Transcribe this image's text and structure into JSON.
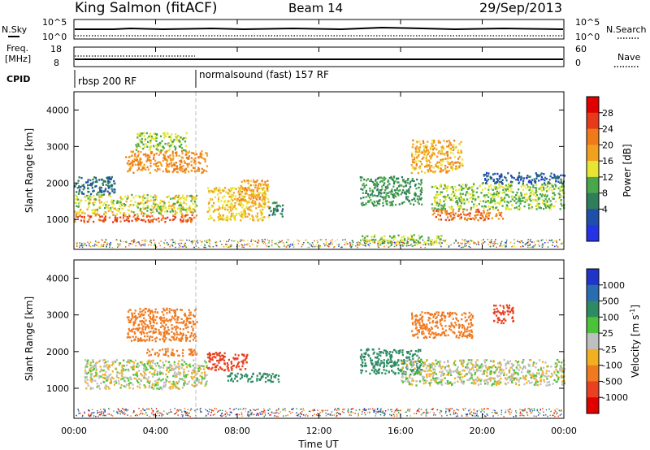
{
  "header": {
    "station": "King Salmon (fitACF)",
    "beam": "Beam 14",
    "date": "29/Sep/2013"
  },
  "status_panels": {
    "nsky_label": "N.Sky",
    "nsky_ticks": [
      "10^5",
      "10^0"
    ],
    "nsearch_label": "N.Search",
    "nsearch_ticks": [
      "10^5",
      "10^0"
    ],
    "freq_label_line1": "Freq.",
    "freq_label_line2": "[MHz]",
    "freq_ticks": [
      "18",
      "8"
    ],
    "nave_label": "Nave",
    "nave_ticks": [
      "60",
      "0"
    ],
    "cpid_label": "CPID",
    "cpid_segments": [
      {
        "name": "rbsp 200 RF",
        "start_hour": 0,
        "end_hour": 6
      },
      {
        "name": "normalsound (fast) 157 RF",
        "start_hour": 6,
        "end_hour": 24
      }
    ]
  },
  "axes": {
    "ylabel": "Slant Range [km]",
    "xlabel": "Time UT",
    "x_ticks": [
      "00:00",
      "04:00",
      "08:00",
      "12:00",
      "16:00",
      "20:00",
      "00:00"
    ],
    "y_ticks": [
      "1000",
      "2000",
      "3000",
      "4000"
    ]
  },
  "colorbars": {
    "power": {
      "label": "Power [dB]",
      "ticks": [
        "4",
        "8",
        "12",
        "16",
        "20",
        "24",
        "28"
      ],
      "colors": [
        "#2433e6",
        "#1f4fa8",
        "#2e7d5b",
        "#4aa64a",
        "#e6e632",
        "#f2a020",
        "#ee7a1a",
        "#e63a1a",
        "#e00000"
      ]
    },
    "velocity": {
      "label": "Velocity [m s",
      "label_sup": "-1",
      "label_tail": "]",
      "ticks": [
        "1000",
        "500",
        "100",
        "25",
        "-25",
        "-100",
        "-500",
        "-1000"
      ],
      "colors": [
        "#1f34c8",
        "#2a6cb0",
        "#2e8a63",
        "#4cc23a",
        "#bfbfbf",
        "#f0b020",
        "#f07a20",
        "#e84020",
        "#e00000"
      ]
    }
  },
  "chart_data": [
    {
      "type": "heatmap",
      "title": "Power [dB]",
      "xlabel": "Time UT",
      "ylabel": "Slant Range [km]",
      "xlim": [
        0,
        24
      ],
      "ylim": [
        180,
        4500
      ],
      "colorbar_ticks": [
        4,
        8,
        12,
        16,
        20,
        24,
        28
      ],
      "regions": [
        {
          "t": [
            0.0,
            6.0
          ],
          "range_km": [
            950,
            1150
          ],
          "power_db": 26
        },
        {
          "t": [
            0.0,
            6.0
          ],
          "range_km": [
            1150,
            1700
          ],
          "power_db": 16
        },
        {
          "t": [
            0.0,
            2.0
          ],
          "range_km": [
            1700,
            2200
          ],
          "power_db": 6
        },
        {
          "t": [
            2.5,
            6.5
          ],
          "range_km": [
            2300,
            2900
          ],
          "power_db": 22
        },
        {
          "t": [
            3.0,
            5.5
          ],
          "range_km": [
            2900,
            3400
          ],
          "power_db": 14
        },
        {
          "t": [
            6.5,
            9.5
          ],
          "range_km": [
            1000,
            1900
          ],
          "power_db": 18
        },
        {
          "t": [
            8.0,
            9.5
          ],
          "range_km": [
            1500,
            2100
          ],
          "power_db": 20
        },
        {
          "t": [
            9.5,
            10.2
          ],
          "range_km": [
            1100,
            1500
          ],
          "power_db": 8
        },
        {
          "t": [
            14.0,
            17.0
          ],
          "range_km": [
            1400,
            2200
          ],
          "power_db": 10
        },
        {
          "t": [
            14.0,
            18.0
          ],
          "range_km": [
            350,
            600
          ],
          "power_db": 14
        },
        {
          "t": [
            16.5,
            19.0
          ],
          "range_km": [
            2300,
            3200
          ],
          "power_db": 20
        },
        {
          "t": [
            17.5,
            21.0
          ],
          "range_km": [
            1000,
            1300
          ],
          "power_db": 24
        },
        {
          "t": [
            17.5,
            24.0
          ],
          "range_km": [
            1300,
            2000
          ],
          "power_db": 14
        },
        {
          "t": [
            20.0,
            24.0
          ],
          "range_km": [
            2000,
            2300
          ],
          "power_db": 5
        }
      ]
    },
    {
      "type": "heatmap",
      "title": "Velocity [m s-1]",
      "xlabel": "Time UT",
      "ylabel": "Slant Range [km]",
      "xlim": [
        0,
        24
      ],
      "ylim": [
        180,
        4500
      ],
      "colorbar_ticks": [
        1000,
        500,
        100,
        25,
        -25,
        -100,
        -500,
        -1000
      ],
      "regions": [
        {
          "t": [
            0.5,
            6.5
          ],
          "range_km": [
            1000,
            1800
          ],
          "velocity_ms": 0
        },
        {
          "t": [
            2.5,
            6.0
          ],
          "range_km": [
            2300,
            3200
          ],
          "velocity_ms": -300
        },
        {
          "t": [
            3.5,
            6.0
          ],
          "range_km": [
            1900,
            2100
          ],
          "velocity_ms": -300
        },
        {
          "t": [
            6.5,
            8.5
          ],
          "range_km": [
            1500,
            2000
          ],
          "velocity_ms": -700
        },
        {
          "t": [
            7.5,
            10.0
          ],
          "range_km": [
            1200,
            1450
          ],
          "velocity_ms": 300
        },
        {
          "t": [
            14.0,
            17.0
          ],
          "range_km": [
            1400,
            2100
          ],
          "velocity_ms": 200
        },
        {
          "t": [
            16.5,
            19.5
          ],
          "range_km": [
            2400,
            3100
          ],
          "velocity_ms": -200
        },
        {
          "t": [
            16.0,
            24.0
          ],
          "range_km": [
            1100,
            1800
          ],
          "velocity_ms": 0
        },
        {
          "t": [
            20.5,
            21.5
          ],
          "range_km": [
            2800,
            3300
          ],
          "velocity_ms": -600
        }
      ]
    }
  ]
}
